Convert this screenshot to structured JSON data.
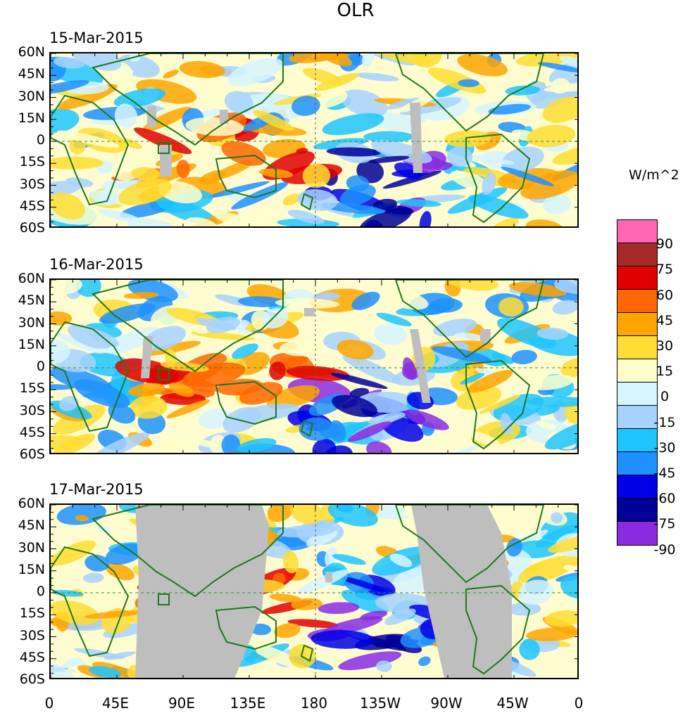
{
  "title": "OLR",
  "units_label": "W/m^2",
  "colorbar": {
    "colors": [
      "#ff66b3",
      "#a52a2a",
      "#e00000",
      "#ff6600",
      "#ffa500",
      "#ffdd33",
      "#ffffcc",
      "#d6f5ff",
      "#a7d2ff",
      "#1ec4ff",
      "#1e90ff",
      "#0000e6",
      "#000099",
      "#8a2be2"
    ],
    "labels": [
      "90",
      "75",
      "60",
      "45",
      "30",
      "15",
      "0",
      "-15",
      "-30",
      "-45",
      "-60",
      "-75",
      "-90"
    ]
  },
  "y_axis_labels": [
    "60N",
    "45N",
    "30N",
    "15N",
    "0",
    "15S",
    "30S",
    "45S",
    "60S"
  ],
  "x_axis_labels": [
    "0",
    "45E",
    "90E",
    "135E",
    "180",
    "135W",
    "90W",
    "45W",
    "0"
  ],
  "panels": [
    {
      "date": "15-Mar-2015"
    },
    {
      "date": "16-Mar-2015"
    },
    {
      "date": "17-Mar-2015"
    }
  ],
  "colors": {
    "coastline": "#1a7a1a",
    "missing": "#bebebe",
    "equator_line": "#2e8b2e"
  }
}
